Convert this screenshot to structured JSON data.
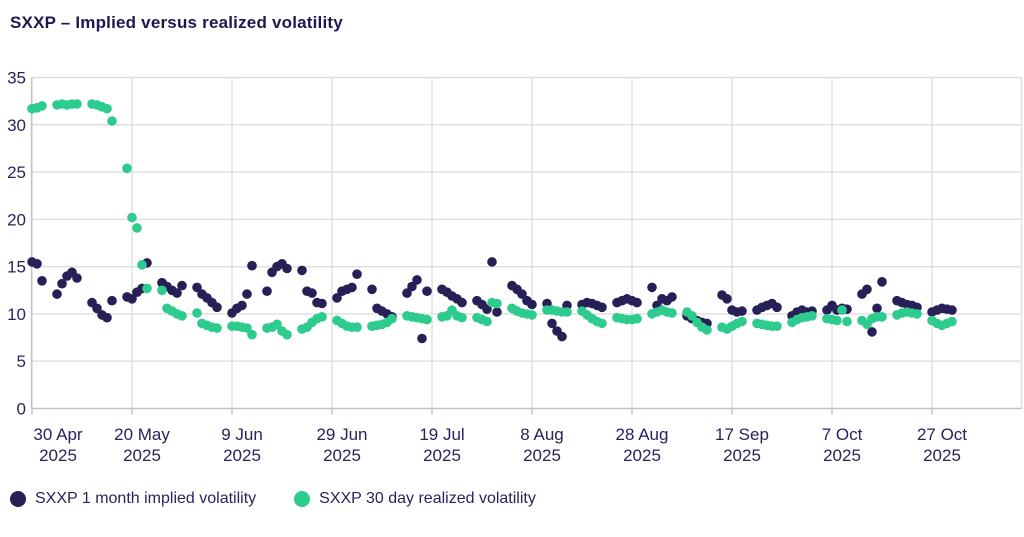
{
  "title": "SXXP – Implied versus realized volatility",
  "colors": {
    "implied": "#262057",
    "realized": "#2dcb8e",
    "text": "#29235c",
    "gridline": "#dedede",
    "axis": "#c4c4c4",
    "background": "#ffffff"
  },
  "legend": {
    "items": [
      {
        "label": "SXXP 1 month implied volatility",
        "color_key": "implied"
      },
      {
        "label": "SXXP 30 day realized volatility",
        "color_key": "realized"
      }
    ]
  },
  "chart_data": {
    "type": "scatter",
    "title": "SXXP – Implied versus realized volatility",
    "xlabel": "",
    "ylabel": "",
    "ylim": [
      0,
      35
    ],
    "grid": true,
    "legend_position": "bottom",
    "y_ticks": [
      0,
      5,
      10,
      15,
      20,
      25,
      30,
      35
    ],
    "x_ticks": [
      {
        "date": "2025-04-30",
        "label": [
          "30 Apr",
          "2025"
        ]
      },
      {
        "date": "2025-05-20",
        "label": [
          "20 May",
          "2025"
        ]
      },
      {
        "date": "2025-06-09",
        "label": [
          "9 Jun",
          "2025"
        ]
      },
      {
        "date": "2025-06-29",
        "label": [
          "29 Jun",
          "2025"
        ]
      },
      {
        "date": "2025-07-19",
        "label": [
          "19 Jul",
          "2025"
        ]
      },
      {
        "date": "2025-08-08",
        "label": [
          "8 Aug",
          "2025"
        ]
      },
      {
        "date": "2025-08-28",
        "label": [
          "28 Aug",
          "2025"
        ]
      },
      {
        "date": "2025-09-17",
        "label": [
          "17 Sep",
          "2025"
        ]
      },
      {
        "date": "2025-10-07",
        "label": [
          "7 Oct",
          "2025"
        ]
      },
      {
        "date": "2025-10-27",
        "label": [
          "27 Oct",
          "2025"
        ]
      }
    ],
    "x_range": [
      "2025-04-30",
      "2025-10-31"
    ],
    "dates": [
      "2025-04-30",
      "2025-05-01",
      "2025-05-02",
      "2025-05-05",
      "2025-05-06",
      "2025-05-07",
      "2025-05-08",
      "2025-05-09",
      "2025-05-12",
      "2025-05-13",
      "2025-05-14",
      "2025-05-15",
      "2025-05-16",
      "2025-05-19",
      "2025-05-20",
      "2025-05-21",
      "2025-05-22",
      "2025-05-23",
      "2025-05-26",
      "2025-05-27",
      "2025-05-28",
      "2025-05-29",
      "2025-05-30",
      "2025-06-02",
      "2025-06-03",
      "2025-06-04",
      "2025-06-05",
      "2025-06-06",
      "2025-06-09",
      "2025-06-10",
      "2025-06-11",
      "2025-06-12",
      "2025-06-13",
      "2025-06-16",
      "2025-06-17",
      "2025-06-18",
      "2025-06-19",
      "2025-06-20",
      "2025-06-23",
      "2025-06-24",
      "2025-06-25",
      "2025-06-26",
      "2025-06-27",
      "2025-06-30",
      "2025-07-01",
      "2025-07-02",
      "2025-07-03",
      "2025-07-04",
      "2025-07-07",
      "2025-07-08",
      "2025-07-09",
      "2025-07-10",
      "2025-07-11",
      "2025-07-14",
      "2025-07-15",
      "2025-07-16",
      "2025-07-17",
      "2025-07-18",
      "2025-07-21",
      "2025-07-22",
      "2025-07-23",
      "2025-07-24",
      "2025-07-25",
      "2025-07-28",
      "2025-07-29",
      "2025-07-30",
      "2025-07-31",
      "2025-08-01",
      "2025-08-04",
      "2025-08-05",
      "2025-08-06",
      "2025-08-07",
      "2025-08-08",
      "2025-08-11",
      "2025-08-12",
      "2025-08-13",
      "2025-08-14",
      "2025-08-15",
      "2025-08-18",
      "2025-08-19",
      "2025-08-20",
      "2025-08-21",
      "2025-08-22",
      "2025-08-25",
      "2025-08-26",
      "2025-08-27",
      "2025-08-28",
      "2025-08-29",
      "2025-09-01",
      "2025-09-02",
      "2025-09-03",
      "2025-09-04",
      "2025-09-05",
      "2025-09-08",
      "2025-09-09",
      "2025-09-10",
      "2025-09-11",
      "2025-09-12",
      "2025-09-15",
      "2025-09-16",
      "2025-09-17",
      "2025-09-18",
      "2025-09-19",
      "2025-09-22",
      "2025-09-23",
      "2025-09-24",
      "2025-09-25",
      "2025-09-26",
      "2025-09-29",
      "2025-09-30",
      "2025-10-01",
      "2025-10-02",
      "2025-10-03",
      "2025-10-06",
      "2025-10-07",
      "2025-10-08",
      "2025-10-09",
      "2025-10-10",
      "2025-10-13",
      "2025-10-14",
      "2025-10-15",
      "2025-10-16",
      "2025-10-17",
      "2025-10-20",
      "2025-10-21",
      "2025-10-22",
      "2025-10-23",
      "2025-10-24",
      "2025-10-27",
      "2025-10-28",
      "2025-10-29",
      "2025-10-30",
      "2025-10-31"
    ],
    "series": [
      {
        "name": "SXXP 1 month implied volatility",
        "color_key": "implied",
        "values": [
          15.5,
          15.3,
          13.5,
          12.1,
          13.2,
          14.0,
          14.4,
          13.8,
          11.2,
          10.6,
          9.9,
          9.6,
          11.4,
          11.8,
          11.6,
          12.3,
          12.7,
          15.4,
          13.3,
          12.9,
          12.5,
          12.2,
          13.0,
          12.8,
          12.1,
          11.7,
          11.2,
          10.7,
          10.1,
          10.6,
          10.9,
          12.1,
          15.1,
          12.4,
          14.4,
          15.0,
          15.3,
          14.8,
          14.6,
          12.4,
          12.2,
          11.2,
          11.1,
          11.7,
          12.4,
          12.6,
          12.8,
          14.2,
          12.6,
          10.6,
          10.3,
          10.0,
          9.7,
          12.2,
          12.9,
          13.6,
          7.4,
          12.4,
          12.6,
          12.3,
          11.9,
          11.6,
          11.2,
          11.4,
          11.0,
          10.5,
          15.5,
          10.2,
          13.0,
          12.6,
          12.1,
          11.4,
          11.0,
          11.1,
          9.0,
          8.2,
          7.6,
          10.9,
          11.0,
          11.2,
          11.1,
          10.9,
          10.7,
          11.2,
          11.4,
          11.6,
          11.4,
          11.2,
          12.8,
          10.9,
          11.6,
          11.4,
          11.8,
          9.8,
          9.5,
          9.3,
          9.1,
          9.0,
          12.0,
          11.6,
          10.4,
          10.2,
          10.3,
          10.4,
          10.7,
          10.9,
          11.1,
          10.7,
          9.8,
          10.2,
          10.4,
          10.2,
          10.3,
          10.4,
          10.9,
          10.4,
          10.6,
          10.5,
          12.1,
          12.6,
          8.1,
          10.6,
          13.4,
          11.4,
          11.2,
          11.0,
          10.9,
          10.7,
          10.2,
          10.4,
          10.6,
          10.5,
          10.4
        ]
      },
      {
        "name": "SXXP 30 day realized volatility",
        "color_key": "realized",
        "values": [
          31.7,
          31.8,
          32.0,
          32.1,
          32.2,
          32.1,
          32.2,
          32.2,
          32.2,
          32.1,
          31.9,
          31.7,
          30.4,
          25.4,
          20.2,
          19.1,
          15.2,
          12.7,
          12.5,
          10.6,
          10.3,
          10.0,
          9.8,
          10.1,
          9.0,
          8.8,
          8.6,
          8.5,
          8.7,
          8.7,
          8.6,
          8.5,
          7.8,
          8.5,
          8.6,
          8.9,
          8.2,
          7.8,
          8.4,
          8.6,
          9.1,
          9.5,
          9.7,
          9.3,
          9.0,
          8.7,
          8.6,
          8.6,
          8.7,
          8.8,
          8.9,
          9.1,
          9.5,
          9.8,
          9.7,
          9.6,
          9.5,
          9.4,
          9.7,
          9.8,
          10.4,
          9.8,
          9.6,
          9.6,
          9.4,
          9.2,
          11.2,
          11.1,
          10.6,
          10.3,
          10.1,
          10.0,
          9.9,
          10.4,
          10.4,
          10.3,
          10.2,
          10.2,
          10.3,
          9.9,
          9.5,
          9.2,
          9.0,
          9.6,
          9.5,
          9.4,
          9.4,
          9.5,
          10.0,
          10.2,
          10.4,
          10.2,
          10.1,
          10.2,
          9.8,
          9.1,
          8.6,
          8.3,
          8.6,
          8.4,
          8.7,
          9.0,
          9.2,
          9.0,
          8.9,
          8.8,
          8.7,
          8.7,
          9.1,
          9.4,
          9.6,
          9.7,
          9.8,
          9.5,
          9.4,
          9.3,
          10.4,
          9.2,
          9.3,
          8.9,
          9.5,
          9.7,
          9.7,
          9.9,
          10.1,
          10.2,
          10.1,
          10.0,
          9.3,
          9.0,
          8.8,
          9.0,
          9.2
        ]
      }
    ]
  }
}
